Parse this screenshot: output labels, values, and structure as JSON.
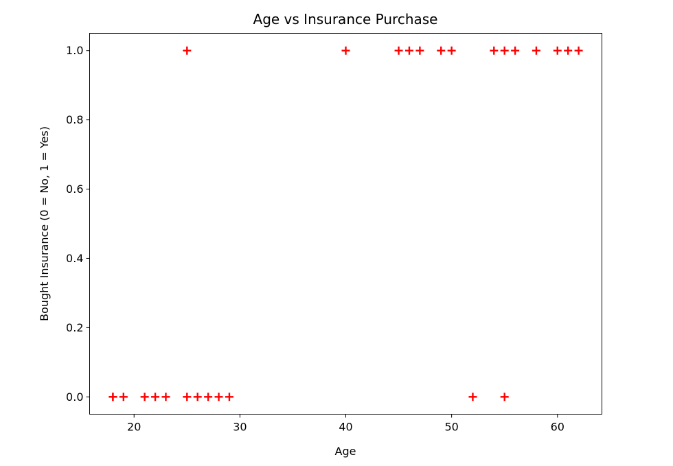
{
  "chart_data": {
    "type": "scatter",
    "title": "Age vs Insurance Purchase",
    "xlabel": "Age",
    "ylabel": "Bought Insurance (0 = No, 1 = Yes)",
    "xlim": [
      15.8,
      64.2
    ],
    "ylim": [
      -0.05,
      1.05
    ],
    "xticks": [
      20,
      30,
      40,
      50,
      60
    ],
    "xtick_labels": [
      "20",
      "30",
      "40",
      "50",
      "60"
    ],
    "yticks": [
      0.0,
      0.2,
      0.4,
      0.6,
      0.8,
      1.0
    ],
    "ytick_labels": [
      "0.0",
      "0.2",
      "0.4",
      "0.6",
      "0.8",
      "1.0"
    ],
    "grid": false,
    "marker": "+",
    "color": "#ff0000",
    "series": [
      {
        "x": [
          22,
          25,
          47,
          52,
          46,
          56,
          55,
          60,
          62,
          61,
          18,
          28,
          27,
          29,
          49,
          55,
          25,
          58,
          19,
          18,
          21,
          26,
          40,
          45,
          50,
          54,
          23
        ],
        "y": [
          0,
          0,
          1,
          0,
          1,
          1,
          0,
          1,
          1,
          1,
          0,
          0,
          0,
          0,
          1,
          1,
          1,
          1,
          0,
          0,
          0,
          0,
          1,
          1,
          1,
          1,
          0
        ]
      }
    ]
  }
}
